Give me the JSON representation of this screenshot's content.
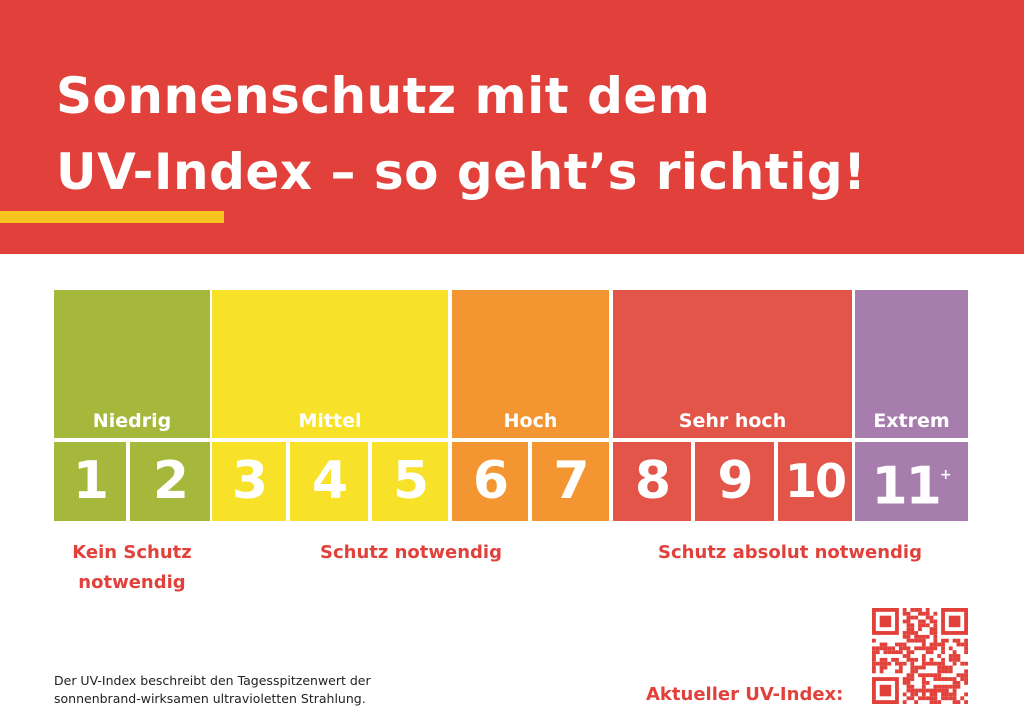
{
  "header": {
    "title_line1": "Sonnenschutz mit dem",
    "title_line2": "UV-Index – so geht’s richtig!",
    "background_color": "#E2413B",
    "accent_color": "#F7C31F"
  },
  "levels": [
    {
      "id": "niedrig",
      "label": "Niedrig",
      "color": "#A6B83B",
      "icon": "sun-icon"
    },
    {
      "id": "mittel",
      "label": "Mittel",
      "color": "#F8E229",
      "icon": "sun-icon"
    },
    {
      "id": "hoch",
      "label": "Hoch",
      "color": "#F39631",
      "icon": "sun-icon"
    },
    {
      "id": "sehr-hoch",
      "label": "Sehr hoch",
      "color": "#E25548",
      "icon": "sun-icon"
    },
    {
      "id": "extrem",
      "label": "Extrem",
      "color": "#A77DAE",
      "icon": "sun-icon"
    }
  ],
  "scale": {
    "values": [
      {
        "value": "1",
        "color": "#A6B83B"
      },
      {
        "value": "2",
        "color": "#A6B83B"
      },
      {
        "value": "3",
        "color": "#F8E229"
      },
      {
        "value": "4",
        "color": "#F8E229"
      },
      {
        "value": "5",
        "color": "#F8E229"
      },
      {
        "value": "6",
        "color": "#F39631"
      },
      {
        "value": "7",
        "color": "#F39631"
      },
      {
        "value": "8",
        "color": "#E25548"
      },
      {
        "value": "9",
        "color": "#E25548"
      },
      {
        "value": "10",
        "color": "#E25548"
      },
      {
        "value": "11",
        "color": "#A77DAE",
        "suffix": "+"
      }
    ]
  },
  "notes": {
    "kein_schutz_line1": "Kein Schutz",
    "kein_schutz_line2": "notwendig",
    "schutz_notwendig": "Schutz notwendig",
    "schutz_absolut": "Schutz absolut notwendig"
  },
  "footer": {
    "description_line1": "Der UV-Index beschreibt den Tagesspitzenwert der",
    "description_line2": "sonnenbrand-wirksamen ultravioletten Strahlung.",
    "current_label": "Aktueller UV-Index:",
    "qr_icon": "qr-code-icon"
  }
}
